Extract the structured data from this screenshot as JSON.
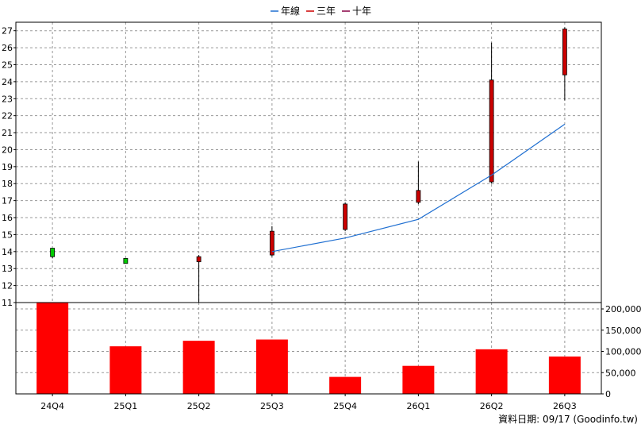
{
  "legend": [
    {
      "label": "年線",
      "color": "#1f6fd1"
    },
    {
      "label": "三年",
      "color": "#cc0000"
    },
    {
      "label": "十年",
      "color": "#880044"
    }
  ],
  "footer": {
    "text": "資料日期: 09/17  (Goodinfo.tw)"
  },
  "colors": {
    "up": "#cc0000",
    "down": "#00cc00",
    "volume": "#ff0000",
    "ma_line": "#1f6fd1",
    "wick": "#000000"
  },
  "chart_data": [
    {
      "type": "candlestick",
      "categories": [
        "24Q4",
        "25Q1",
        "25Q2",
        "25Q3",
        "25Q4",
        "26Q1",
        "26Q2",
        "26Q3"
      ],
      "ylim": [
        11,
        27.5
      ],
      "yticks": [
        11,
        12,
        13,
        14,
        15,
        16,
        17,
        18,
        19,
        20,
        21,
        22,
        23,
        24,
        25,
        26,
        27
      ],
      "grid": true,
      "candles": [
        {
          "open": 14.2,
          "high": 14.2,
          "low": 13.6,
          "close": 13.7
        },
        {
          "open": 13.6,
          "high": 13.6,
          "low": 13.3,
          "close": 13.3
        },
        {
          "open": 13.4,
          "high": 13.8,
          "low": 11.0,
          "close": 13.7
        },
        {
          "open": 13.8,
          "high": 15.5,
          "low": 13.7,
          "close": 15.2
        },
        {
          "open": 15.3,
          "high": 16.9,
          "low": 15.2,
          "close": 16.8
        },
        {
          "open": 16.9,
          "high": 19.3,
          "low": 16.8,
          "close": 17.6
        },
        {
          "open": 18.1,
          "high": 26.3,
          "low": 18.0,
          "close": 24.1
        },
        {
          "open": 24.4,
          "high": 27.2,
          "low": 22.9,
          "close": 27.1
        }
      ],
      "series": [
        {
          "name": "年線",
          "type": "line",
          "values": [
            null,
            null,
            null,
            14.0,
            14.8,
            15.9,
            18.5,
            21.5
          ]
        }
      ]
    },
    {
      "type": "bar",
      "categories": [
        "24Q4",
        "25Q1",
        "25Q2",
        "25Q3",
        "25Q4",
        "26Q1",
        "26Q2",
        "26Q3"
      ],
      "values": [
        215000,
        112000,
        125000,
        128000,
        40000,
        66000,
        105000,
        88000
      ],
      "ylim": [
        0,
        215000
      ],
      "yticks": [
        0,
        50000,
        100000,
        150000,
        200000
      ],
      "ytick_labels": [
        "0",
        "50,000",
        "100,000",
        "150,000",
        "200,000"
      ],
      "grid": true
    }
  ]
}
